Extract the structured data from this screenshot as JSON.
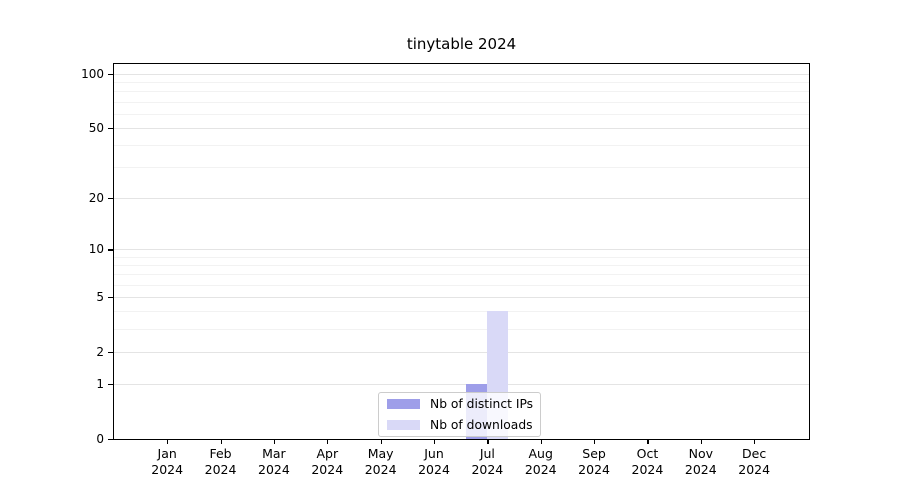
{
  "chart_data": {
    "type": "bar",
    "title": "tinytable 2024",
    "year": "2024",
    "months": [
      "Jan",
      "Feb",
      "Mar",
      "Apr",
      "May",
      "Jun",
      "Jul",
      "Aug",
      "Sep",
      "Oct",
      "Nov",
      "Dec"
    ],
    "categories": [
      "Jan 2024",
      "Feb 2024",
      "Mar 2024",
      "Apr 2024",
      "May 2024",
      "Jun 2024",
      "Jul 2024",
      "Aug 2024",
      "Sep 2024",
      "Oct 2024",
      "Nov 2024",
      "Dec 2024"
    ],
    "series": [
      {
        "name": "Nb of distinct IPs",
        "color": "#9e9ee9",
        "values": [
          0,
          0,
          0,
          0,
          0,
          0,
          1,
          0,
          0,
          0,
          0,
          0
        ]
      },
      {
        "name": "Nb of downloads",
        "color": "#d9d9f7",
        "values": [
          0,
          0,
          0,
          0,
          0,
          0,
          4,
          0,
          0,
          0,
          0,
          0
        ]
      }
    ],
    "yscale": "log1p",
    "ylim": [
      0,
      100
    ],
    "yticks_major": [
      0,
      1,
      2,
      5,
      10,
      20,
      50,
      100
    ],
    "yticks_minor": [
      3,
      4,
      6,
      7,
      8,
      9,
      30,
      40,
      60,
      70,
      80,
      90
    ],
    "grid": "horizontal",
    "legend_position": "bottom-center",
    "colors": {
      "grid_major": "#e4e4e4",
      "grid_minor": "#f2f2f2",
      "axis": "#000000",
      "legend_border": "#cccccc",
      "background": "#ffffff"
    }
  }
}
